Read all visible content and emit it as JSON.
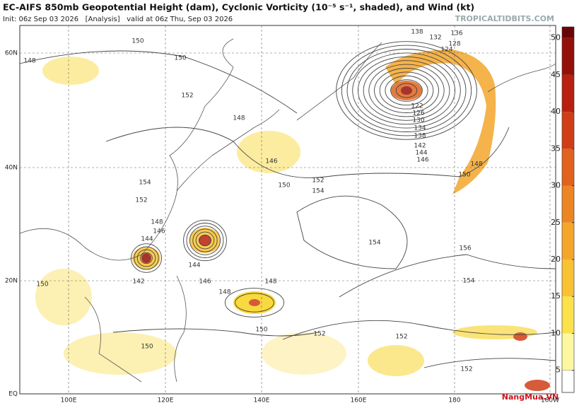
{
  "header": {
    "title": "EC-AIFS 850mb Geopotential Height (dam), Cyclonic Vorticity (10⁻⁵ s⁻¹, shaded), and Wind (kt)",
    "subtitle": "Init: 06z Sep 03 2026   [Analysis]   valid at 06z Thu, Sep 03 2026",
    "source": "TROPICALTIDBITS.COM"
  },
  "map": {
    "lat_labels": [
      "60N",
      "40N",
      "20N",
      "EQ"
    ],
    "lon_labels": [
      "100E",
      "120E",
      "140E",
      "160E",
      "180",
      "160W"
    ],
    "contour_labels": [
      "150",
      "150",
      "148",
      "152",
      "148",
      "146",
      "150",
      "152",
      "154",
      "154",
      "152",
      "148",
      "146",
      "144",
      "142",
      "144",
      "146",
      "148",
      "148",
      "150",
      "152",
      "152",
      "152",
      "154",
      "156",
      "154",
      "150",
      "148",
      "146",
      "144",
      "142",
      "138",
      "134",
      "130",
      "126",
      "122",
      "138",
      "132",
      "136",
      "128",
      "124",
      "150",
      "150"
    ]
  },
  "colorbar": {
    "lim": [
      2,
      51.5
    ],
    "ticks": [
      5,
      10,
      15,
      20,
      25,
      30,
      35,
      40,
      45,
      50
    ],
    "colors": [
      "#fdf7a0",
      "#fbe14a",
      "#f8c233",
      "#f4a62b",
      "#ec8524",
      "#e0621c",
      "#cf3e16",
      "#b8210f",
      "#941109",
      "#6a0505"
    ]
  },
  "watermark": "NangMua.VN"
}
